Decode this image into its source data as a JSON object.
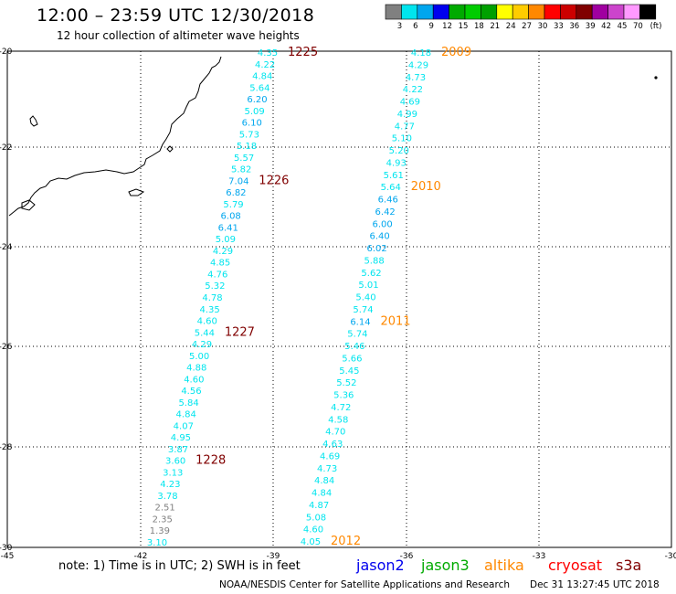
{
  "title": "12:00 – 23:59 UTC 12/30/2018",
  "subtitle": "12 hour collection of altimeter wave heights",
  "legend": {
    "unit": "(ft)",
    "bins": [
      {
        "label": "3",
        "color": "#808080"
      },
      {
        "label": "6",
        "color": "#00e5ee"
      },
      {
        "label": "9",
        "color": "#00a6ee"
      },
      {
        "label": "12",
        "color": "#0000ee"
      },
      {
        "label": "15",
        "color": "#00aa00"
      },
      {
        "label": "18",
        "color": "#00cc00"
      },
      {
        "label": "21",
        "color": "#00a000"
      },
      {
        "label": "24",
        "color": "#ffff00"
      },
      {
        "label": "27",
        "color": "#ffcc00"
      },
      {
        "label": "30",
        "color": "#ff8800"
      },
      {
        "label": "33",
        "color": "#ff0000"
      },
      {
        "label": "36",
        "color": "#cc0000"
      },
      {
        "label": "39",
        "color": "#800000"
      },
      {
        "label": "42",
        "color": "#a000a0"
      },
      {
        "label": "45",
        "color": "#cc44cc"
      },
      {
        "label": "70",
        "color": "#ff99ff"
      },
      {
        "label": "",
        "color": "#000000"
      }
    ]
  },
  "axes": {
    "lat_labels": [
      "-20",
      "-22",
      "-24",
      "-26",
      "-28",
      "-30"
    ],
    "lon_labels": [
      "-45",
      "-42",
      "-39",
      "-36",
      "-33",
      "-30"
    ]
  },
  "tracks": [
    {
      "id": "track-1",
      "times": [
        {
          "label": "1225",
          "after": 0,
          "color": "#800000"
        },
        {
          "label": "1226",
          "after": 11,
          "color": "#800000"
        },
        {
          "label": "1227",
          "after": 24,
          "color": "#800000"
        },
        {
          "label": "1228",
          "after": 35,
          "color": "#800000"
        }
      ],
      "values": [
        {
          "v": "4.35",
          "c": "#00e5ee"
        },
        {
          "v": "4.22",
          "c": "#00e5ee"
        },
        {
          "v": "4.84",
          "c": "#00e5ee"
        },
        {
          "v": "5.64",
          "c": "#00e5ee"
        },
        {
          "v": "6.20",
          "c": "#00a6ee"
        },
        {
          "v": "5.09",
          "c": "#00e5ee"
        },
        {
          "v": "6.10",
          "c": "#00a6ee"
        },
        {
          "v": "5.73",
          "c": "#00e5ee"
        },
        {
          "v": "5.18",
          "c": "#00e5ee"
        },
        {
          "v": "5.57",
          "c": "#00e5ee"
        },
        {
          "v": "5.82",
          "c": "#00e5ee"
        },
        {
          "v": "7.04",
          "c": "#00a6ee"
        },
        {
          "v": "6.82",
          "c": "#00a6ee"
        },
        {
          "v": "5.79",
          "c": "#00e5ee"
        },
        {
          "v": "6.08",
          "c": "#00a6ee"
        },
        {
          "v": "6.41",
          "c": "#00a6ee"
        },
        {
          "v": "5.09",
          "c": "#00e5ee"
        },
        {
          "v": "4.29",
          "c": "#00e5ee"
        },
        {
          "v": "4.85",
          "c": "#00e5ee"
        },
        {
          "v": "4.76",
          "c": "#00e5ee"
        },
        {
          "v": "5.32",
          "c": "#00e5ee"
        },
        {
          "v": "4.78",
          "c": "#00e5ee"
        },
        {
          "v": "4.35",
          "c": "#00e5ee"
        },
        {
          "v": "4.60",
          "c": "#00e5ee"
        },
        {
          "v": "5.44",
          "c": "#00e5ee"
        },
        {
          "v": "4.29",
          "c": "#00e5ee"
        },
        {
          "v": "5.00",
          "c": "#00e5ee"
        },
        {
          "v": "4.88",
          "c": "#00e5ee"
        },
        {
          "v": "4.60",
          "c": "#00e5ee"
        },
        {
          "v": "4.56",
          "c": "#00e5ee"
        },
        {
          "v": "5.84",
          "c": "#00e5ee"
        },
        {
          "v": "4.84",
          "c": "#00e5ee"
        },
        {
          "v": "4.07",
          "c": "#00e5ee"
        },
        {
          "v": "4.95",
          "c": "#00e5ee"
        },
        {
          "v": "3.87",
          "c": "#00e5ee"
        },
        {
          "v": "3.60",
          "c": "#00e5ee"
        },
        {
          "v": "3.13",
          "c": "#00e5ee"
        },
        {
          "v": "4.23",
          "c": "#00e5ee"
        },
        {
          "v": "3.78",
          "c": "#00e5ee"
        },
        {
          "v": "2.51",
          "c": "#808080"
        },
        {
          "v": "2.35",
          "c": "#808080"
        },
        {
          "v": "1.39",
          "c": "#808080"
        },
        {
          "v": "3.10",
          "c": "#00e5ee"
        }
      ]
    },
    {
      "id": "track-2",
      "times": [
        {
          "label": "2009",
          "after": 0,
          "color": "#ff8800"
        },
        {
          "label": "2010",
          "after": 11,
          "color": "#ff8800"
        },
        {
          "label": "2011",
          "after": 22,
          "color": "#ff8800"
        },
        {
          "label": "2012",
          "after": 40,
          "color": "#ff8800"
        }
      ],
      "values": [
        {
          "v": "4.18",
          "c": "#00e5ee"
        },
        {
          "v": "4.29",
          "c": "#00e5ee"
        },
        {
          "v": "4.73",
          "c": "#00e5ee"
        },
        {
          "v": "4.22",
          "c": "#00e5ee"
        },
        {
          "v": "4.69",
          "c": "#00e5ee"
        },
        {
          "v": "4.99",
          "c": "#00e5ee"
        },
        {
          "v": "4.77",
          "c": "#00e5ee"
        },
        {
          "v": "5.10",
          "c": "#00e5ee"
        },
        {
          "v": "5.20",
          "c": "#00e5ee"
        },
        {
          "v": "4.93",
          "c": "#00e5ee"
        },
        {
          "v": "5.61",
          "c": "#00e5ee"
        },
        {
          "v": "5.64",
          "c": "#00e5ee"
        },
        {
          "v": "6.46",
          "c": "#00a6ee"
        },
        {
          "v": "6.42",
          "c": "#00a6ee"
        },
        {
          "v": "6.00",
          "c": "#00a6ee"
        },
        {
          "v": "6.40",
          "c": "#00a6ee"
        },
        {
          "v": "6.02",
          "c": "#00a6ee"
        },
        {
          "v": "5.88",
          "c": "#00e5ee"
        },
        {
          "v": "5.62",
          "c": "#00e5ee"
        },
        {
          "v": "5.01",
          "c": "#00e5ee"
        },
        {
          "v": "5.40",
          "c": "#00e5ee"
        },
        {
          "v": "5.74",
          "c": "#00e5ee"
        },
        {
          "v": "6.14",
          "c": "#00a6ee"
        },
        {
          "v": "5.74",
          "c": "#00e5ee"
        },
        {
          "v": "5.46",
          "c": "#00e5ee"
        },
        {
          "v": "5.66",
          "c": "#00e5ee"
        },
        {
          "v": "5.45",
          "c": "#00e5ee"
        },
        {
          "v": "5.52",
          "c": "#00e5ee"
        },
        {
          "v": "5.36",
          "c": "#00e5ee"
        },
        {
          "v": "4.72",
          "c": "#00e5ee"
        },
        {
          "v": "4.58",
          "c": "#00e5ee"
        },
        {
          "v": "4.70",
          "c": "#00e5ee"
        },
        {
          "v": "4.63",
          "c": "#00e5ee"
        },
        {
          "v": "4.69",
          "c": "#00e5ee"
        },
        {
          "v": "4.73",
          "c": "#00e5ee"
        },
        {
          "v": "4.84",
          "c": "#00e5ee"
        },
        {
          "v": "4.84",
          "c": "#00e5ee"
        },
        {
          "v": "4.87",
          "c": "#00e5ee"
        },
        {
          "v": "5.08",
          "c": "#00e5ee"
        },
        {
          "v": "4.60",
          "c": "#00e5ee"
        },
        {
          "v": "4.05",
          "c": "#00e5ee"
        }
      ]
    }
  ],
  "note": "note: 1) Time is in UTC; 2) SWH is in feet",
  "satellites": [
    {
      "name": "jason2",
      "color": "#0000ee"
    },
    {
      "name": "jason3",
      "color": "#00aa00"
    },
    {
      "name": "altika",
      "color": "#ff8800"
    },
    {
      "name": "cryosat",
      "color": "#ff0000"
    },
    {
      "name": "s3a",
      "color": "#800000"
    }
  ],
  "footer": "NOAA/NESDIS Center for Satellite Applications and Research",
  "timestamp": "Dec 31 13:27:45 UTC 2018"
}
